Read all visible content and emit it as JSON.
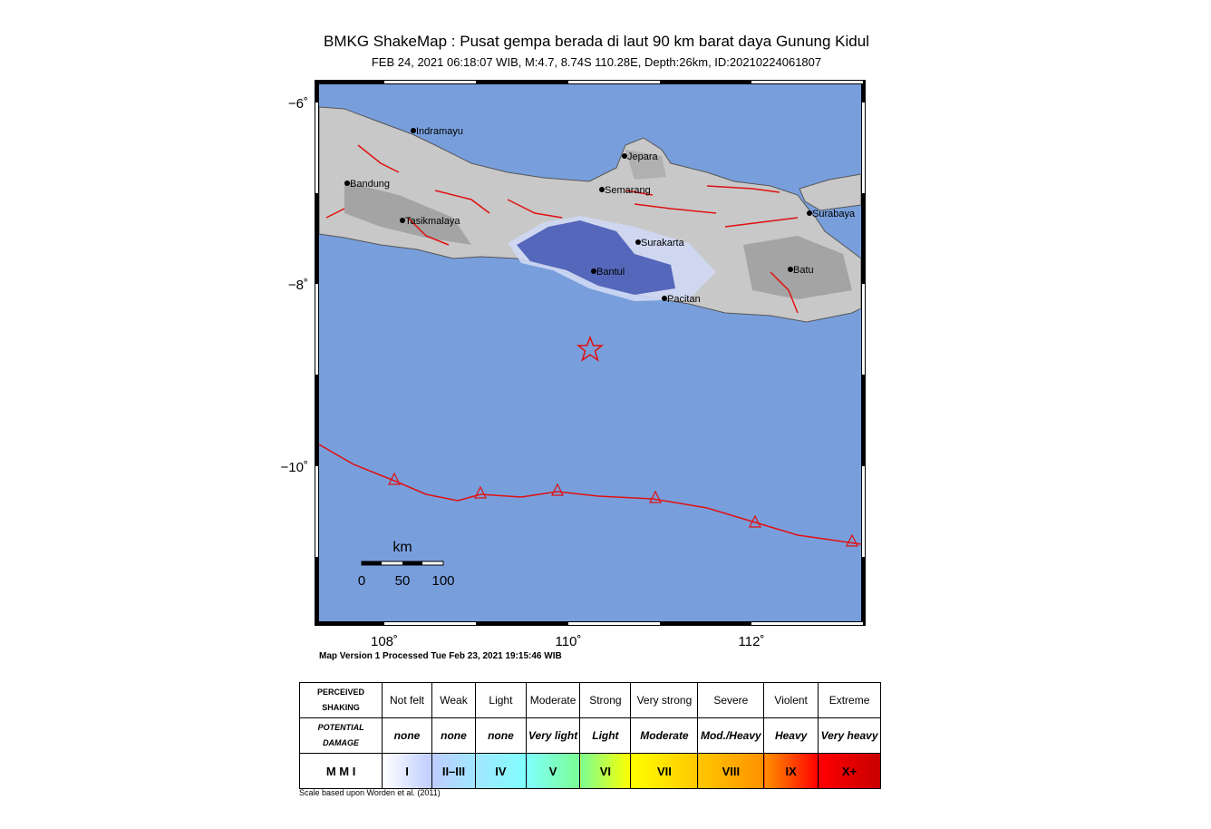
{
  "title": "BMKG ShakeMap : Pusat gempa berada di laut 90 km barat daya Gunung Kidul",
  "subtitle": "FEB 24, 2021 06:18:07 WIB, M:4.7, 8.74S 110.28E, Depth:26km, ID:20210224061807",
  "map": {
    "lat_labels": [
      "−6˚",
      "−8˚",
      "−10˚"
    ],
    "lon_labels": [
      "108˚",
      "110˚",
      "112˚"
    ],
    "cities": [
      "Indramayu",
      "Jepara",
      "Bandung",
      "Semarang",
      "Tasikmalaya",
      "Surabaya",
      "Surakarta",
      "Bantul",
      "Batu",
      "Pacitan"
    ],
    "scale": {
      "unit": "km",
      "labels": [
        "0",
        "50",
        "100"
      ]
    }
  },
  "version": "Map Version 1 Processed Tue Feb 23, 2021 19:15:46 WIB",
  "legend": {
    "rows": [
      [
        "PERCEIVED SHAKING",
        "Not felt",
        "Weak",
        "Light",
        "Moderate",
        "Strong",
        "Very strong",
        "Severe",
        "Violent",
        "Extreme"
      ],
      [
        "POTENTIAL DAMAGE",
        "none",
        "none",
        "none",
        "Very light",
        "Light",
        "Moderate",
        "Mod./Heavy",
        "Heavy",
        "Very heavy"
      ],
      [
        "M M I",
        "I",
        "II–III",
        "IV",
        "V",
        "VI",
        "VII",
        "VIII",
        "IX",
        "X+"
      ]
    ]
  },
  "footnote": "Scale based upon Worden et al. (2011)"
}
